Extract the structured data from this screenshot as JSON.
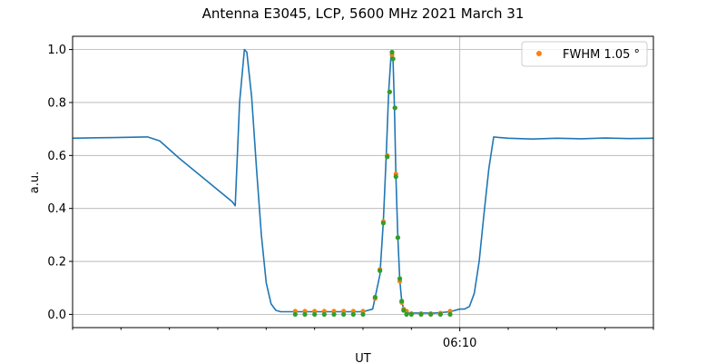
{
  "chart_data": {
    "type": "line",
    "title": "Antenna E3045, LCP, 5600 MHz 2021 March 31",
    "xlabel": "UT",
    "ylabel": "a.u.",
    "xlim": [
      0,
      12
    ],
    "ylim": [
      -0.05,
      1.05
    ],
    "x_tick_values": [
      0,
      1,
      2,
      3,
      4,
      5,
      6,
      7,
      8,
      9,
      10,
      11,
      12
    ],
    "x_tick_labels": [
      "",
      "",
      "",
      "",
      "",
      "",
      "",
      "",
      "06:10",
      "",
      "",
      "",
      ""
    ],
    "y_ticks": [
      0.0,
      0.2,
      0.4,
      0.6,
      0.8,
      1.0
    ],
    "y_tick_labels": [
      "0.0",
      "0.2",
      "0.4",
      "0.6",
      "0.8",
      "1.0"
    ],
    "grid": true,
    "vline_x": 8,
    "legend": {
      "position": "top-right",
      "entries": [
        {
          "label": "FWHM 1.05$^\\circ$",
          "display": "FWHM 1.05 °",
          "color": "#ff7f0e"
        }
      ]
    },
    "series": [
      {
        "kind": "line",
        "color": "#1f77b4",
        "x": [
          0,
          0.5,
          1.0,
          1.5,
          1.55,
          1.8,
          2.2,
          2.6,
          3.0,
          3.3,
          3.36,
          3.45,
          3.55,
          3.6,
          3.7,
          3.8,
          3.9,
          4.0,
          4.1,
          4.2,
          4.3,
          4.4,
          4.6,
          4.8,
          5.0,
          5.5,
          6.0,
          6.2,
          6.35,
          6.42,
          6.48,
          6.53,
          6.58,
          6.62,
          6.65,
          6.68,
          6.72,
          6.76,
          6.8,
          6.84,
          6.88,
          6.94,
          7.0,
          7.2,
          7.5,
          7.8,
          8.0,
          8.1,
          8.2,
          8.3,
          8.4,
          8.5,
          8.6,
          8.7,
          8.8,
          9.0,
          9.5,
          10.0,
          10.5,
          11.0,
          11.5,
          12.0
        ],
        "y": [
          0.665,
          0.667,
          0.668,
          0.67,
          0.67,
          0.655,
          0.59,
          0.53,
          0.47,
          0.425,
          0.41,
          0.8,
          1.0,
          0.99,
          0.82,
          0.55,
          0.3,
          0.12,
          0.04,
          0.015,
          0.01,
          0.01,
          0.01,
          0.01,
          0.01,
          0.01,
          0.01,
          0.02,
          0.15,
          0.35,
          0.6,
          0.84,
          0.98,
          0.965,
          0.78,
          0.52,
          0.29,
          0.13,
          0.05,
          0.02,
          0.01,
          0.005,
          0.005,
          0.005,
          0.005,
          0.01,
          0.02,
          0.02,
          0.03,
          0.08,
          0.2,
          0.38,
          0.55,
          0.67,
          0.668,
          0.665,
          0.662,
          0.665,
          0.663,
          0.666,
          0.664,
          0.665
        ]
      },
      {
        "kind": "scatter",
        "color": "#ff7f0e",
        "x": [
          4.6,
          4.8,
          5.0,
          5.2,
          5.4,
          5.6,
          5.8,
          6.0,
          6.25,
          6.35,
          6.42,
          6.5,
          6.55,
          6.6,
          6.62,
          6.66,
          6.68,
          6.72,
          6.76,
          6.8,
          6.84,
          6.9,
          7.0,
          7.2,
          7.4,
          7.6,
          7.8
        ],
        "y": [
          0.012,
          0.012,
          0.012,
          0.012,
          0.012,
          0.012,
          0.012,
          0.012,
          0.06,
          0.17,
          0.35,
          0.6,
          0.84,
          0.98,
          0.965,
          0.78,
          0.53,
          0.29,
          0.125,
          0.045,
          0.02,
          0.012,
          0.003,
          0.003,
          0.003,
          0.005,
          0.012
        ]
      },
      {
        "kind": "scatter",
        "color": "#2ca02c",
        "x": [
          4.6,
          4.8,
          5.0,
          5.2,
          5.4,
          5.6,
          5.8,
          6.0,
          6.25,
          6.35,
          6.42,
          6.5,
          6.55,
          6.6,
          6.62,
          6.66,
          6.68,
          6.72,
          6.76,
          6.8,
          6.84,
          6.9,
          7.0,
          7.2,
          7.4,
          7.6,
          7.8
        ],
        "y": [
          0.0,
          0.0,
          0.0,
          0.0,
          0.0,
          0.0,
          0.0,
          0.0,
          0.065,
          0.165,
          0.345,
          0.595,
          0.84,
          0.99,
          0.965,
          0.78,
          0.52,
          0.29,
          0.135,
          0.05,
          0.015,
          0.0,
          0.0,
          0.0,
          0.0,
          0.0,
          0.0
        ]
      }
    ]
  }
}
